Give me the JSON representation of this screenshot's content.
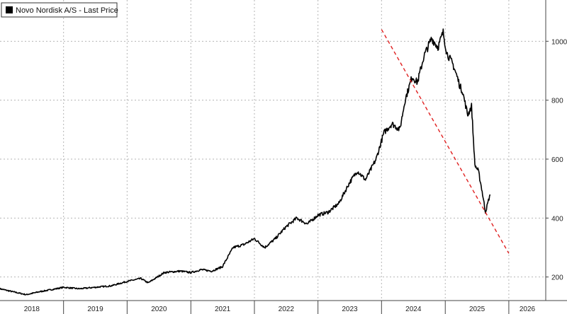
{
  "chart_data": {
    "type": "line",
    "legend": "Novo Nordisk A/S - Last Price",
    "legend_position": "top-left",
    "y_axis_side": "right",
    "grid": true,
    "xlim": [
      "2018-01-01",
      "2026-08-01"
    ],
    "ylim": [
      120,
      1140
    ],
    "y_ticks": [
      200,
      400,
      600,
      800,
      1000
    ],
    "x_tick_labels": [
      "2018",
      "2019",
      "2020",
      "2021",
      "2022",
      "2023",
      "2024",
      "2025",
      "2026"
    ],
    "series": [
      {
        "name": "Novo Nordisk A/S - Last Price",
        "color": "#000000",
        "x": [
          "2018-01-01",
          "2018-03-15",
          "2018-06-01",
          "2018-08-15",
          "2018-11-01",
          "2019-01-01",
          "2019-04-01",
          "2019-07-01",
          "2019-10-01",
          "2020-01-01",
          "2020-03-20",
          "2020-05-01",
          "2020-08-01",
          "2020-11-01",
          "2021-01-01",
          "2021-03-01",
          "2021-05-01",
          "2021-07-01",
          "2021-09-01",
          "2021-11-01",
          "2022-01-01",
          "2022-03-01",
          "2022-05-01",
          "2022-07-01",
          "2022-09-01",
          "2022-11-01",
          "2023-01-01",
          "2023-03-01",
          "2023-05-01",
          "2023-07-01",
          "2023-08-15",
          "2023-10-01",
          "2023-12-01",
          "2024-01-15",
          "2024-03-01",
          "2024-04-15",
          "2024-05-15",
          "2024-06-25",
          "2024-07-25",
          "2024-09-01",
          "2024-10-15",
          "2024-11-20",
          "2024-12-20",
          "2025-01-10",
          "2025-02-15",
          "2025-03-10",
          "2025-03-25",
          "2025-04-10",
          "2025-05-10",
          "2025-06-01",
          "2025-06-20",
          "2025-07-10",
          "2025-07-29",
          "2025-08-20",
          "2025-09-15"
        ],
        "y": [
          160,
          150,
          140,
          150,
          158,
          165,
          160,
          165,
          170,
          185,
          195,
          180,
          215,
          220,
          215,
          225,
          220,
          235,
          300,
          310,
          330,
          300,
          330,
          370,
          400,
          380,
          410,
          420,
          450,
          520,
          560,
          530,
          600,
          690,
          720,
          700,
          800,
          880,
          860,
          950,
          1010,
          980,
          1030,
          960,
          920,
          880,
          850,
          830,
          750,
          780,
          580,
          560,
          500,
          420,
          480
        ]
      }
    ],
    "trendline": {
      "style": "dashed",
      "color": "#e02020",
      "x": [
        "2024-01-01",
        "2026-01-01"
      ],
      "y": [
        1040,
        280
      ]
    }
  }
}
